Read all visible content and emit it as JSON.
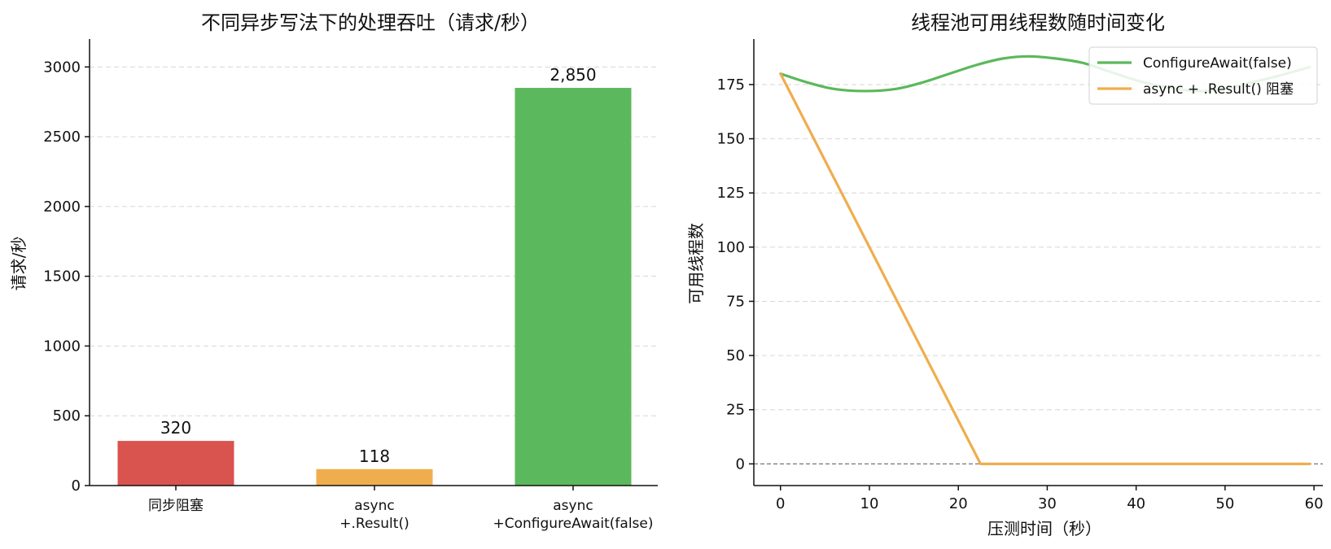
{
  "chart_data": [
    {
      "type": "bar",
      "title": "不同异步写法下的处理吞吐（请求/秒）",
      "xlabel": "",
      "ylabel": "请求/秒",
      "ylim": [
        0,
        3200
      ],
      "yticks": [
        0,
        500,
        1000,
        1500,
        2000,
        2500,
        3000
      ],
      "grid": "y",
      "categories": [
        [
          "同步阻塞"
        ],
        [
          "async",
          "+.Result()"
        ],
        [
          "async",
          "+ConfigureAwait(false)"
        ]
      ],
      "values": [
        320,
        118,
        2850
      ],
      "value_labels": [
        "320",
        "118",
        "2,850"
      ],
      "colors": [
        "#d9534f",
        "#f0ad4e",
        "#5cb85c"
      ]
    },
    {
      "type": "line",
      "title": "线程池可用线程数随时间变化",
      "xlabel": "压测时间（秒）",
      "ylabel": "可用线程数",
      "xlim": [
        -3,
        61
      ],
      "ylim": [
        -10,
        196
      ],
      "xticks": [
        0,
        10,
        20,
        30,
        40,
        50,
        60
      ],
      "yticks": [
        0,
        25,
        50,
        75,
        100,
        125,
        150,
        175
      ],
      "grid": "y",
      "reference_line": {
        "y": 0,
        "color": "#777777"
      },
      "legend_position": "top-right",
      "series": [
        {
          "name": "ConfigureAwait(false)",
          "color": "#5cb85c",
          "x": [
            0,
            3,
            6,
            9.5,
            13,
            16,
            19,
            22,
            25,
            28,
            31,
            34,
            37,
            40,
            43,
            47,
            50,
            53,
            56,
            59.5
          ],
          "y": [
            180,
            176,
            173,
            172,
            173,
            176,
            180,
            184,
            187,
            188,
            187,
            185,
            181,
            177,
            174,
            172,
            173,
            176,
            179,
            183
          ]
        },
        {
          "name": "async + .Result() 阻塞",
          "color": "#f0ad4e",
          "x": [
            0,
            22.5,
            59.5
          ],
          "y": [
            180,
            0,
            0
          ]
        }
      ]
    }
  ]
}
